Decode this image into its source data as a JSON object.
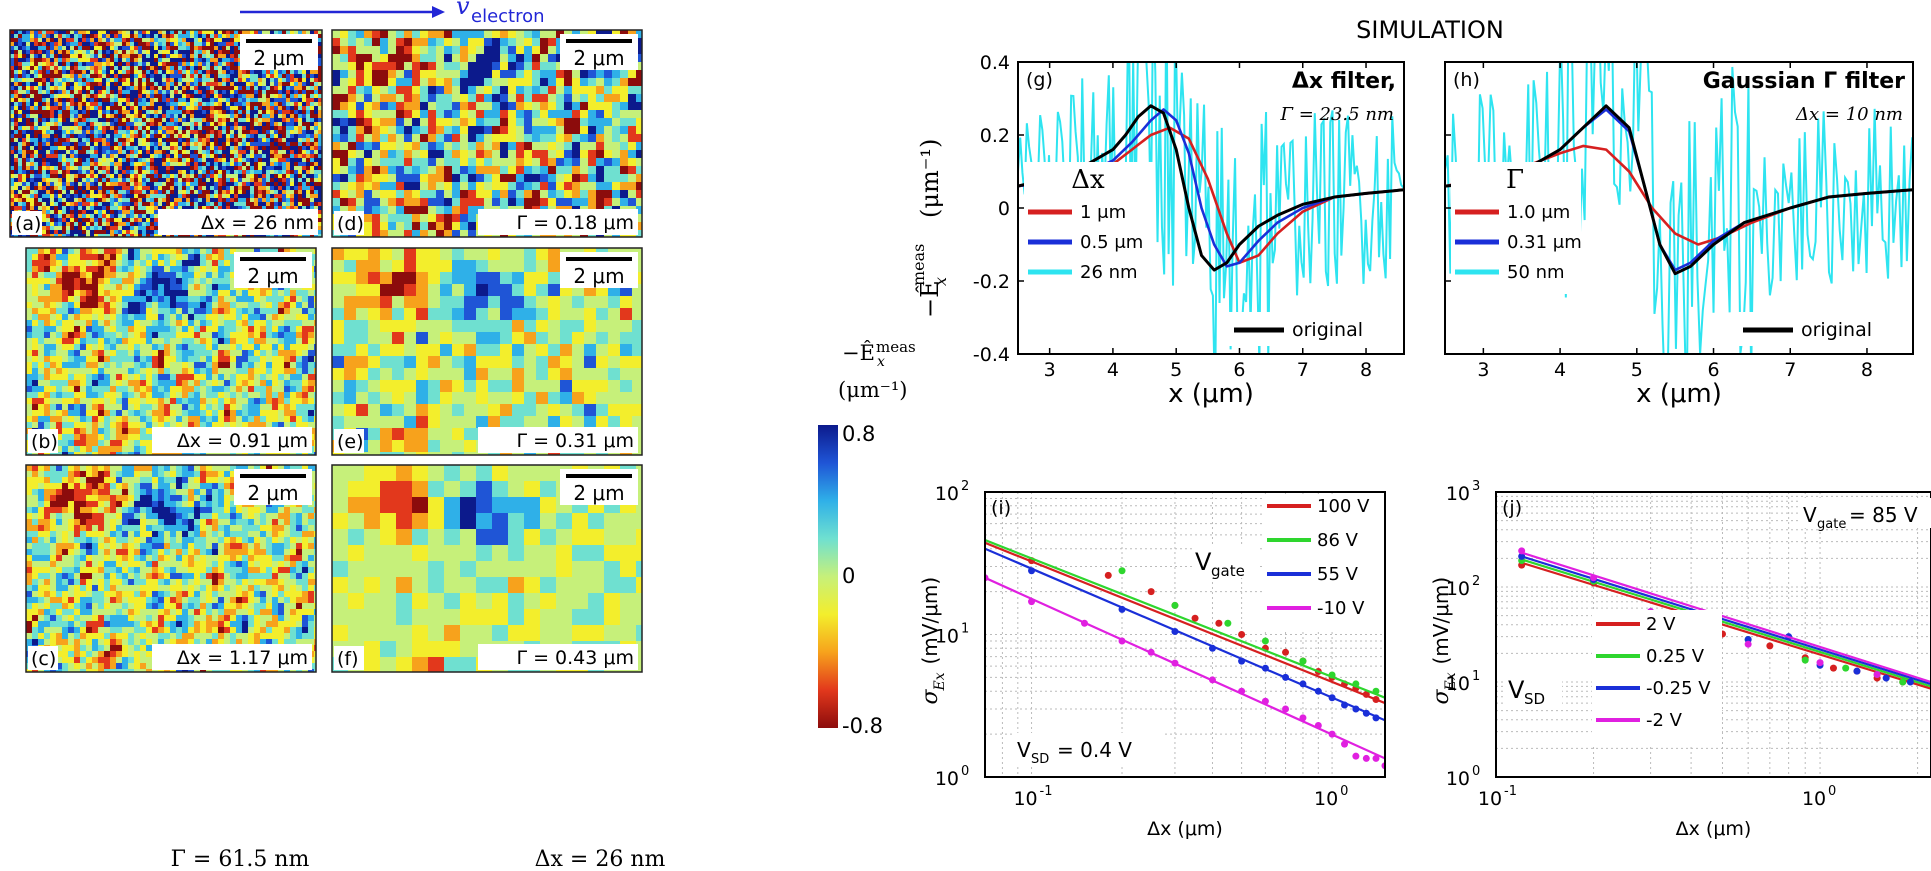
{
  "header": {
    "velocity_label": "v",
    "velocity_sub": "electron",
    "simulation_title": "SIMULATION"
  },
  "colorbar": {
    "label_line1": "−Ê",
    "label_sub": "x",
    "label_sup": "meas",
    "label_line2": "(μm⁻¹)",
    "max_label": "0.8",
    "mid_label": "0",
    "min_label": "-0.8",
    "colors": [
      "#0c1a8c",
      "#1f55d6",
      "#2fb0e8",
      "#6fe0d0",
      "#c6f07a",
      "#f3ee2c",
      "#f7a21c",
      "#e2381c",
      "#8c0c0c"
    ]
  },
  "maps": [
    {
      "panel": "(a)",
      "scale": "2 μm",
      "param": "Δx = 26 nm",
      "style": "noise"
    },
    {
      "panel": "(b)",
      "scale": "2 μm",
      "param": "Δx = 0.91 μm",
      "style": "medium"
    },
    {
      "panel": "(c)",
      "scale": "2 μm",
      "param": "Δx = 1.17 μm",
      "style": "medium"
    },
    {
      "panel": "(d)",
      "scale": "2 μm",
      "param": "Γ = 0.18 μm",
      "style": "worm"
    },
    {
      "panel": "(e)",
      "scale": "2 μm",
      "param": "Γ = 0.31 μm",
      "style": "blob"
    },
    {
      "panel": "(f)",
      "scale": "2 μm",
      "param": "Γ = 0.43 μm",
      "style": "smooth"
    }
  ],
  "column_captions": {
    "left": "Γ = 61.5 nm",
    "right": "Δx = 26 nm"
  },
  "chart_data": [
    {
      "id": "g",
      "type": "line",
      "panel": "(g)",
      "title": "Δx filter,",
      "subtitle": "Γ = 23.5 nm",
      "xlabel": "x (μm)",
      "ylabel": "−Ê",
      "ylabel_sub": "x",
      "ylabel_sup": "meas",
      "ylabel_units": "(μm⁻¹)",
      "xlim": [
        2.5,
        8.6
      ],
      "ylim": [
        -0.4,
        0.4
      ],
      "xticks": [
        3,
        4,
        5,
        6,
        7,
        8
      ],
      "yticks": [
        0.4,
        0.2,
        0,
        -0.2,
        -0.4
      ],
      "ytick_labels": [
        "0.4",
        "0.2",
        "0",
        "-0.2",
        "-0.4"
      ],
      "legend_title": "Δx",
      "series": [
        {
          "name": "1 μm",
          "color": "#d62020",
          "x": [
            2.5,
            3,
            3.5,
            4,
            4.3,
            4.6,
            4.9,
            5.2,
            5.5,
            5.8,
            6.0,
            6.3,
            6.6,
            7,
            7.5,
            8,
            8.6
          ],
          "y": [
            0.06,
            0.07,
            0.09,
            0.12,
            0.16,
            0.2,
            0.22,
            0.19,
            0.08,
            -0.07,
            -0.15,
            -0.13,
            -0.07,
            -0.01,
            0.03,
            0.04,
            0.05
          ]
        },
        {
          "name": "0.5 μm",
          "color": "#1a2fd8",
          "x": [
            2.5,
            3,
            3.5,
            4,
            4.3,
            4.6,
            4.8,
            5.0,
            5.2,
            5.4,
            5.6,
            5.8,
            6.0,
            6.3,
            6.6,
            7,
            7.5,
            8,
            8.6
          ],
          "y": [
            0.06,
            0.07,
            0.09,
            0.13,
            0.18,
            0.24,
            0.27,
            0.24,
            0.15,
            0.0,
            -0.1,
            -0.16,
            -0.15,
            -0.09,
            -0.04,
            0.0,
            0.03,
            0.04,
            0.05
          ]
        },
        {
          "name": "26 nm",
          "color": "#2ee4f0",
          "noisy": true
        },
        {
          "name": "original",
          "color": "#000000",
          "x": [
            2.5,
            3,
            3.5,
            4,
            4.2,
            4.4,
            4.6,
            4.8,
            5.0,
            5.2,
            5.4,
            5.6,
            5.8,
            6.0,
            6.3,
            6.6,
            7,
            7.5,
            8,
            8.6
          ],
          "y": [
            0.06,
            0.08,
            0.11,
            0.16,
            0.2,
            0.25,
            0.28,
            0.26,
            0.16,
            0.0,
            -0.13,
            -0.17,
            -0.15,
            -0.1,
            -0.05,
            -0.02,
            0.01,
            0.03,
            0.04,
            0.05
          ]
        }
      ]
    },
    {
      "id": "h",
      "type": "line",
      "panel": "(h)",
      "title": "Gaussian Γ filter",
      "subtitle": "Δx = 10 nm",
      "xlabel": "x (μm)",
      "xlim": [
        2.5,
        8.6
      ],
      "ylim": [
        -0.4,
        0.4
      ],
      "xticks": [
        3,
        4,
        5,
        6,
        7,
        8
      ],
      "legend_title": "Γ",
      "series": [
        {
          "name": "1.0 μm",
          "color": "#d62020",
          "x": [
            2.5,
            3,
            3.5,
            4,
            4.3,
            4.6,
            4.9,
            5.2,
            5.5,
            5.8,
            6.1,
            6.5,
            7,
            7.5,
            8,
            8.6
          ],
          "y": [
            0.06,
            0.08,
            0.11,
            0.15,
            0.17,
            0.16,
            0.1,
            0.0,
            -0.07,
            -0.1,
            -0.08,
            -0.04,
            0.0,
            0.03,
            0.04,
            0.05
          ]
        },
        {
          "name": "0.31 μm",
          "color": "#1a2fd8",
          "x": [
            2.5,
            3,
            3.5,
            4,
            4.3,
            4.6,
            4.9,
            5.1,
            5.3,
            5.5,
            5.7,
            6.0,
            6.4,
            7,
            7.5,
            8,
            8.6
          ],
          "y": [
            0.06,
            0.07,
            0.1,
            0.16,
            0.22,
            0.27,
            0.21,
            0.06,
            -0.1,
            -0.17,
            -0.15,
            -0.09,
            -0.04,
            0.0,
            0.03,
            0.04,
            0.05
          ]
        },
        {
          "name": "50 nm",
          "color": "#2ee4f0",
          "noisy": true
        },
        {
          "name": "original",
          "color": "#000000",
          "x": [
            2.5,
            3,
            3.5,
            4,
            4.3,
            4.6,
            4.9,
            5.1,
            5.3,
            5.5,
            5.7,
            6.0,
            6.4,
            7,
            7.5,
            8,
            8.6
          ],
          "y": [
            0.06,
            0.07,
            0.1,
            0.16,
            0.22,
            0.28,
            0.22,
            0.06,
            -0.1,
            -0.18,
            -0.16,
            -0.1,
            -0.04,
            0.0,
            0.03,
            0.04,
            0.05
          ]
        }
      ]
    },
    {
      "id": "i",
      "type": "scatter",
      "panel": "(i)",
      "xscale": "log",
      "yscale": "log",
      "xlim": [
        0.07,
        1.5
      ],
      "ylim": [
        1,
        100
      ],
      "xlabel": "Δx (μm)",
      "ylabel": "σ",
      "ylabel_sub": "Ex",
      "ylabel_units": "(mV/μm)",
      "annotation": "V",
      "annotation_sub": "SD",
      "annotation_value": "= 0.4 V",
      "legend_title": "V",
      "legend_title_sub": "gate",
      "series": [
        {
          "name": "100 V",
          "color": "#d62020",
          "fit": [
            [
              0.07,
              44
            ],
            [
              1.5,
              3.3
            ]
          ],
          "x": [
            0.1,
            0.18,
            0.25,
            0.3,
            0.35,
            0.42,
            0.5,
            0.6,
            0.7,
            0.8,
            0.9,
            1.0,
            1.1,
            1.2,
            1.3,
            1.4
          ],
          "y": [
            33,
            26,
            20,
            16,
            13,
            12,
            10,
            8,
            7.5,
            6.5,
            5.5,
            5,
            4.5,
            4.2,
            3.8,
            3.5
          ]
        },
        {
          "name": "86 V",
          "color": "#2ed62e",
          "fit": [
            [
              0.07,
              46
            ],
            [
              1.5,
              3.6
            ]
          ],
          "x": [
            0.2,
            0.3,
            0.45,
            0.6,
            0.8,
            1.0,
            1.2,
            1.4
          ],
          "y": [
            28,
            16,
            12,
            9,
            6.5,
            5.2,
            4.5,
            4
          ]
        },
        {
          "name": "55 V",
          "color": "#1a2fd8",
          "fit": [
            [
              0.07,
              40
            ],
            [
              1.5,
              2.5
            ]
          ],
          "x": [
            0.1,
            0.2,
            0.3,
            0.4,
            0.5,
            0.6,
            0.7,
            0.8,
            0.9,
            1.0,
            1.1,
            1.2,
            1.3,
            1.4
          ],
          "y": [
            28,
            15,
            10.5,
            8,
            6.5,
            5.8,
            5,
            4.5,
            4,
            3.6,
            3.2,
            3,
            2.8,
            2.6
          ]
        },
        {
          "name": "-10 V",
          "color": "#e020e0",
          "fit": [
            [
              0.07,
              25
            ],
            [
              1.5,
              1.35
            ]
          ],
          "x": [
            0.07,
            0.1,
            0.15,
            0.2,
            0.25,
            0.3,
            0.4,
            0.5,
            0.6,
            0.7,
            0.8,
            0.9,
            1.0,
            1.1,
            1.2,
            1.3,
            1.4,
            1.5
          ],
          "y": [
            25,
            17,
            12,
            9,
            7.5,
            6.3,
            4.8,
            4,
            3.4,
            3,
            2.6,
            2.3,
            2.0,
            1.7,
            1.4,
            1.35,
            1.35,
            1.2
          ]
        }
      ]
    },
    {
      "id": "j",
      "type": "scatter",
      "panel": "(j)",
      "xscale": "log",
      "yscale": "log",
      "xlim": [
        0.1,
        2.2
      ],
      "ylim": [
        1,
        1000
      ],
      "xlabel": "Δx (μm)",
      "ylabel": "σ",
      "ylabel_sub": "Ex",
      "ylabel_units": "(mV/μm)",
      "annotation": "V",
      "annotation_sub": "gate",
      "annotation_value": "= 85 V",
      "legend_title": "V",
      "legend_title_sub": "SD",
      "series": [
        {
          "name": "2 V",
          "color": "#d62020",
          "fit": [
            [
              0.12,
              180
            ],
            [
              2.2,
              8.5
            ]
          ],
          "x": [
            0.12,
            0.2,
            0.3,
            0.4,
            0.5,
            0.7,
            0.9,
            1.1,
            1.3,
            1.5,
            1.8
          ],
          "y": [
            170,
            110,
            50,
            38,
            32,
            24,
            18,
            14,
            13,
            11,
            10
          ]
        },
        {
          "name": "0.25 V",
          "color": "#2ed62e",
          "fit": [
            [
              0.12,
              195
            ],
            [
              2.2,
              9
            ]
          ],
          "x": [
            0.12,
            0.2,
            0.4,
            0.6,
            0.9,
            1.2,
            1.5,
            1.8
          ],
          "y": [
            190,
            115,
            40,
            28,
            17,
            14,
            12,
            10
          ]
        },
        {
          "name": "-0.25 V",
          "color": "#1a2fd8",
          "fit": [
            [
              0.12,
              210
            ],
            [
              2.2,
              9.5
            ]
          ],
          "x": [
            0.12,
            0.2,
            0.3,
            0.4,
            0.6,
            0.8,
            1.0,
            1.3,
            1.6,
            1.9
          ],
          "y": [
            210,
            120,
            55,
            35,
            28,
            30,
            15,
            13,
            11,
            10
          ]
        },
        {
          "name": "-2 V",
          "color": "#e020e0",
          "fit": [
            [
              0.12,
              230
            ],
            [
              2.2,
              10
            ]
          ],
          "x": [
            0.12,
            0.2,
            0.3,
            0.6,
            1.0,
            1.5
          ],
          "y": [
            240,
            125,
            55,
            25,
            16,
            12
          ]
        }
      ]
    }
  ]
}
